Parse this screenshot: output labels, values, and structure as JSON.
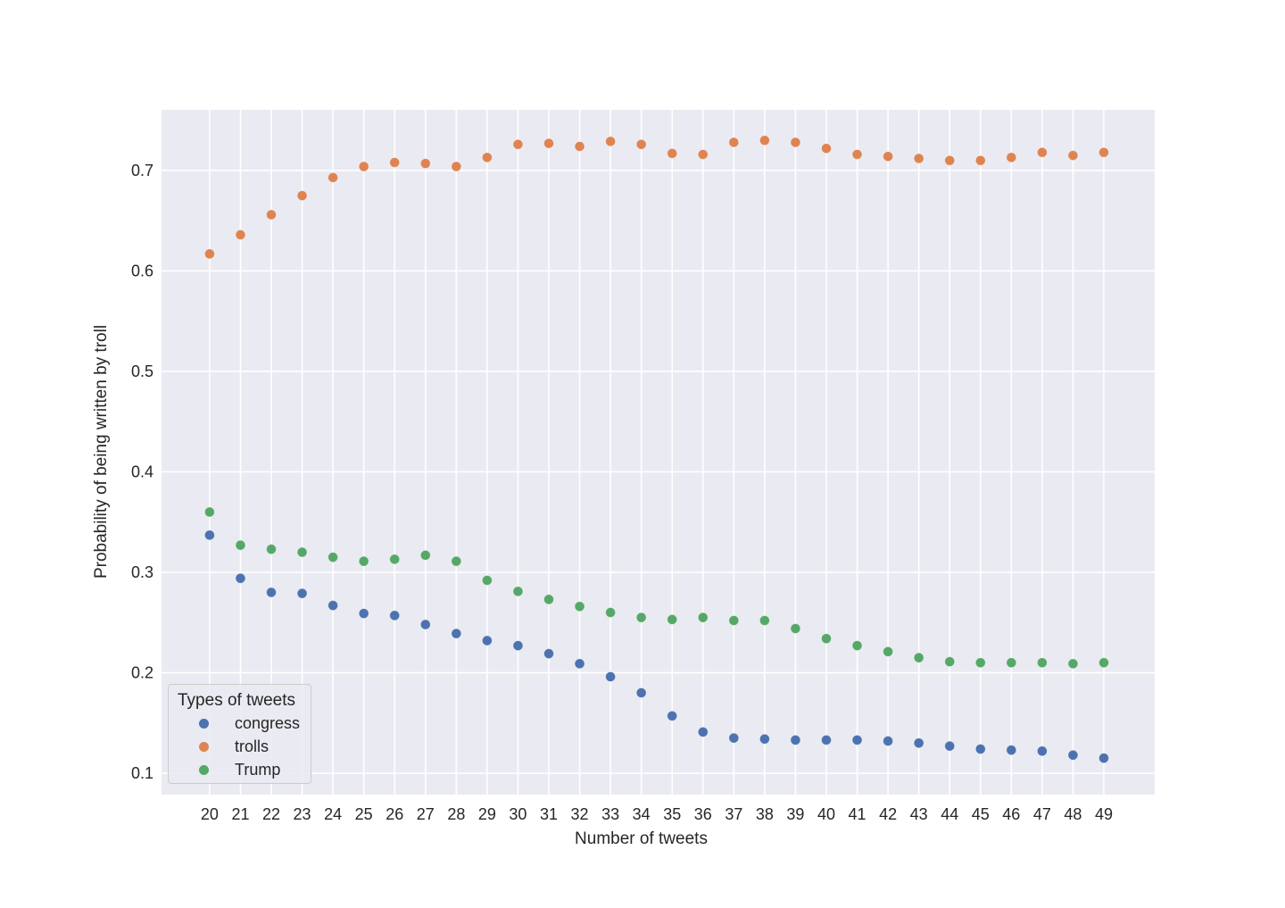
{
  "chart_data": {
    "type": "scatter",
    "title": "",
    "xlabel": "Number of tweets",
    "ylabel": "Probability of being written by troll",
    "x": [
      20,
      21,
      22,
      23,
      24,
      25,
      26,
      27,
      28,
      29,
      30,
      31,
      32,
      33,
      34,
      35,
      36,
      37,
      38,
      39,
      40,
      41,
      42,
      43,
      44,
      45,
      46,
      47,
      48,
      49
    ],
    "series": [
      {
        "name": "congress",
        "color": "#4C72B0",
        "values": [
          0.337,
          0.294,
          0.28,
          0.279,
          0.267,
          0.259,
          0.257,
          0.248,
          0.239,
          0.232,
          0.227,
          0.219,
          0.209,
          0.196,
          0.18,
          0.157,
          0.141,
          0.135,
          0.134,
          0.133,
          0.133,
          0.133,
          0.132,
          0.13,
          0.127,
          0.124,
          0.123,
          0.122,
          0.118,
          0.115
        ]
      },
      {
        "name": "trolls",
        "color": "#DD8452",
        "values": [
          0.617,
          0.636,
          0.656,
          0.675,
          0.693,
          0.704,
          0.708,
          0.707,
          0.704,
          0.713,
          0.726,
          0.727,
          0.724,
          0.729,
          0.726,
          0.717,
          0.716,
          0.728,
          0.73,
          0.728,
          0.722,
          0.716,
          0.714,
          0.712,
          0.71,
          0.71,
          0.713,
          0.718,
          0.715,
          0.718
        ]
      },
      {
        "name": "Trump",
        "color": "#55A868",
        "values": [
          0.36,
          0.327,
          0.323,
          0.32,
          0.315,
          0.311,
          0.313,
          0.317,
          0.311,
          0.292,
          0.281,
          0.273,
          0.266,
          0.26,
          0.255,
          0.253,
          0.255,
          0.252,
          0.252,
          0.244,
          0.234,
          0.227,
          0.221,
          0.215,
          0.211,
          0.21,
          0.21,
          0.21,
          0.209,
          0.21
        ]
      }
    ],
    "xticks": [
      20,
      21,
      22,
      23,
      24,
      25,
      26,
      27,
      28,
      29,
      30,
      31,
      32,
      33,
      34,
      35,
      36,
      37,
      38,
      39,
      40,
      41,
      42,
      43,
      44,
      45,
      46,
      47,
      48,
      49
    ],
    "yticks": [
      0.1,
      0.2,
      0.3,
      0.4,
      0.5,
      0.6,
      0.7
    ],
    "xlim": [
      18.44,
      50.65
    ],
    "ylim": [
      0.0787,
      0.7604
    ],
    "grid": "on",
    "legend": {
      "title": "Types of tweets",
      "position": "lower-left",
      "entries": [
        "congress",
        "trolls",
        "Trump"
      ]
    },
    "colors": {
      "axes_background": "#EAEAF2",
      "gridline": "#FFFFFF",
      "text": "#262626"
    }
  }
}
